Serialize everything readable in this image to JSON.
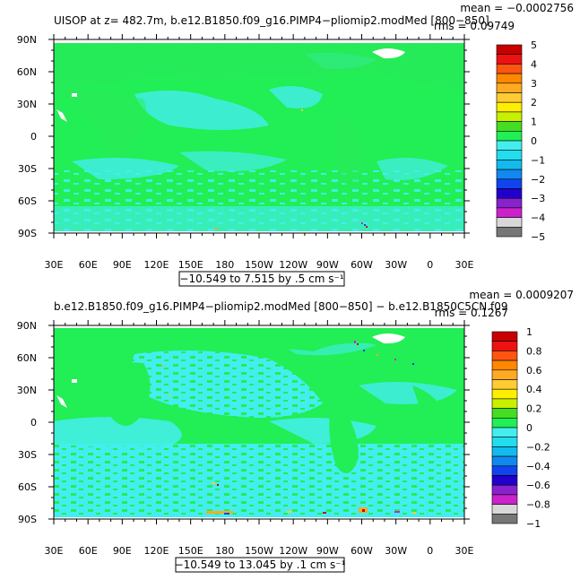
{
  "colors": {
    "ocean_green": "#22ee55",
    "ocean_cyan": "#44eeee",
    "land_white": "#ffffff"
  },
  "panels": [
    {
      "id": "top",
      "title": "UISOP at z= 482.7m, b.e12.B1850.f09_g16.PIMP4−pliomip2.modMed [800−850]",
      "mean_text": "mean = −0.0002756",
      "rms_text": "rms = 0.09749",
      "range_text": "−10.549 to 7.515 by .5 cm s⁻¹",
      "colorbar": {
        "labels": [
          "5",
          "4",
          "3",
          "2",
          "1",
          "0",
          "−1",
          "−2",
          "−3",
          "−4",
          "−5"
        ],
        "colors": [
          "#c80000",
          "#ee1111",
          "#ff5511",
          "#ff8800",
          "#ffaa22",
          "#ffcc33",
          "#ffee00",
          "#c8f000",
          "#44dd22",
          "#22ee55",
          "#44eeee",
          "#22ddee",
          "#11bbee",
          "#1188ee",
          "#1144ee",
          "#2200cc",
          "#8822cc",
          "#cc22cc",
          "#d8d8d8",
          "#777777"
        ]
      }
    },
    {
      "id": "bottom",
      "title": "b.e12.B1850.f09_g16.PIMP4−pliomip2.modMed [800−850]  −  b.e12.B1850C5CN.f09",
      "mean_text": "mean = 0.0009207",
      "rms_text": "rms = 0.1267",
      "range_text": "−10.549 to 13.045 by .1 cm s⁻¹",
      "colorbar": {
        "labels": [
          "1",
          "0.8",
          "0.6",
          "0.4",
          "0.2",
          "0",
          "−0.2",
          "−0.4",
          "−0.6",
          "−0.8",
          "−1"
        ],
        "colors": [
          "#c80000",
          "#ee1111",
          "#ff5511",
          "#ff8800",
          "#ffaa22",
          "#ffcc33",
          "#ffee00",
          "#c8f000",
          "#44dd22",
          "#22ee55",
          "#44eeee",
          "#22ddee",
          "#11bbee",
          "#1188ee",
          "#1144ee",
          "#2200cc",
          "#8822cc",
          "#cc22cc",
          "#d8d8d8",
          "#777777"
        ]
      }
    }
  ],
  "axes": {
    "x_labels": [
      "30E",
      "60E",
      "90E",
      "120E",
      "150E",
      "180",
      "150W",
      "120W",
      "90W",
      "60W",
      "30W",
      "0",
      "30E"
    ],
    "y_labels": [
      "90N",
      "60N",
      "30N",
      "0",
      "30S",
      "60S",
      "90S"
    ]
  }
}
